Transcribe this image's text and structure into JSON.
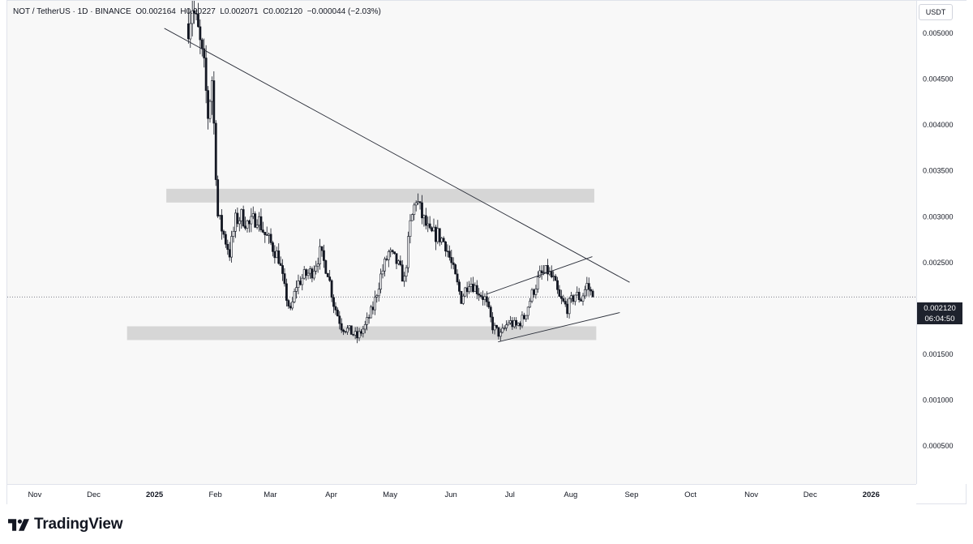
{
  "header": {
    "symbol": "NOT / TetherUS · 1D · BINANCE",
    "open": "O0.002164",
    "high": "H0.00227",
    "low": "L0.002071",
    "close": "C0.002120",
    "change": "−0.000044 (−2.03%)"
  },
  "price_scale": {
    "unit": "USDT",
    "last_price": "0.002120",
    "countdown": "06:04:50"
  },
  "brand": {
    "name": "TradingView"
  },
  "colors": {
    "up": "#131722",
    "down": "#131722",
    "zone": "#d6d6d6",
    "line": "#2a2e39",
    "background": "#f8f8f8"
  },
  "chart_data": {
    "type": "candlestick",
    "symbol": "NOTUSDT",
    "interval": "1D",
    "y_ticks": [
      "0.005000",
      "0.004500",
      "0.004000",
      "0.003500",
      "0.003000",
      "0.002500",
      "0.002000",
      "0.001500",
      "0.001000",
      "0.000500"
    ],
    "y_tick_values": [
      0.005,
      0.0045,
      0.004,
      0.0035,
      0.003,
      0.0025,
      0.002,
      0.0015,
      0.001,
      0.0005
    ],
    "ylim": [
      8e-05,
      0.00535
    ],
    "x_ticks": [
      "Nov",
      "Dec",
      "2025",
      "Feb",
      "Mar",
      "Apr",
      "May",
      "Jun",
      "Jul",
      "Aug",
      "Sep",
      "Oct",
      "Nov",
      "Dec",
      "2026"
    ],
    "x_tick_dates": [
      "2024-11-01",
      "2024-12-01",
      "2025-01-01",
      "2025-02-01",
      "2025-03-01",
      "2025-04-01",
      "2025-05-01",
      "2025-06-01",
      "2025-07-01",
      "2025-08-01",
      "2025-09-01",
      "2025-10-01",
      "2025-11-01",
      "2025-12-01",
      "2026-01-01"
    ],
    "bold_x_ticks": [
      "2025",
      "2026"
    ],
    "xlim": [
      "2024-10-18",
      "2026-01-24"
    ],
    "last_price": 0.00212,
    "price_path": [
      [
        "2025-01-18",
        0.0051
      ],
      [
        "2025-01-20",
        0.0053
      ],
      [
        "2025-01-23",
        0.005
      ],
      [
        "2025-01-26",
        0.0046
      ],
      [
        "2025-01-28",
        0.0041
      ],
      [
        "2025-01-30",
        0.0045
      ],
      [
        "2025-02-02",
        0.003
      ],
      [
        "2025-02-05",
        0.0028
      ],
      [
        "2025-02-08",
        0.0026
      ],
      [
        "2025-02-11",
        0.00295
      ],
      [
        "2025-02-14",
        0.003
      ],
      [
        "2025-02-18",
        0.0029
      ],
      [
        "2025-02-22",
        0.003
      ],
      [
        "2025-02-26",
        0.0028
      ],
      [
        "2025-03-01",
        0.0027
      ],
      [
        "2025-03-05",
        0.00255
      ],
      [
        "2025-03-08",
        0.0022
      ],
      [
        "2025-03-11",
        0.00195
      ],
      [
        "2025-03-14",
        0.00225
      ],
      [
        "2025-03-18",
        0.00235
      ],
      [
        "2025-03-22",
        0.0024
      ],
      [
        "2025-03-26",
        0.0026
      ],
      [
        "2025-03-30",
        0.0024
      ],
      [
        "2025-04-02",
        0.00205
      ],
      [
        "2025-04-06",
        0.0018
      ],
      [
        "2025-04-10",
        0.00175
      ],
      [
        "2025-04-14",
        0.00168
      ],
      [
        "2025-04-18",
        0.0018
      ],
      [
        "2025-04-22",
        0.002
      ],
      [
        "2025-04-26",
        0.00235
      ],
      [
        "2025-04-30",
        0.0026
      ],
      [
        "2025-05-04",
        0.0025
      ],
      [
        "2025-05-08",
        0.0023
      ],
      [
        "2025-05-11",
        0.0029
      ],
      [
        "2025-05-14",
        0.0032
      ],
      [
        "2025-05-17",
        0.003
      ],
      [
        "2025-05-21",
        0.0028
      ],
      [
        "2025-05-25",
        0.0028
      ],
      [
        "2025-05-29",
        0.0027
      ],
      [
        "2025-06-02",
        0.0024
      ],
      [
        "2025-06-06",
        0.0021
      ],
      [
        "2025-06-10",
        0.0023
      ],
      [
        "2025-06-14",
        0.0022
      ],
      [
        "2025-06-18",
        0.0021
      ],
      [
        "2025-06-22",
        0.0018
      ],
      [
        "2025-06-26",
        0.0017
      ],
      [
        "2025-06-30",
        0.00185
      ],
      [
        "2025-07-04",
        0.0018
      ],
      [
        "2025-07-08",
        0.0019
      ],
      [
        "2025-07-12",
        0.00215
      ],
      [
        "2025-07-16",
        0.00235
      ],
      [
        "2025-07-20",
        0.0024
      ],
      [
        "2025-07-23",
        0.0023
      ],
      [
        "2025-07-26",
        0.0021
      ],
      [
        "2025-07-30",
        0.002
      ],
      [
        "2025-08-03",
        0.00215
      ],
      [
        "2025-08-06",
        0.0021
      ],
      [
        "2025-08-09",
        0.00225
      ],
      [
        "2025-08-12",
        0.00212
      ]
    ],
    "annotations": {
      "descending_trendline": [
        [
          "2025-01-06",
          0.00505
        ],
        [
          "2025-08-31",
          0.00228
        ]
      ],
      "rising_channel_upper": [
        [
          "2025-06-19",
          0.00215
        ],
        [
          "2025-08-12",
          0.00256
        ]
      ],
      "rising_channel_lower": [
        [
          "2025-06-25",
          0.00163
        ],
        [
          "2025-08-26",
          0.00195
        ]
      ],
      "resistance_zone": {
        "from": "2025-01-07",
        "to": "2025-08-13",
        "low": 0.00315,
        "high": 0.0033
      },
      "support_zone": {
        "from": "2024-12-18",
        "to": "2025-08-14",
        "low": 0.00165,
        "high": 0.0018
      }
    }
  }
}
